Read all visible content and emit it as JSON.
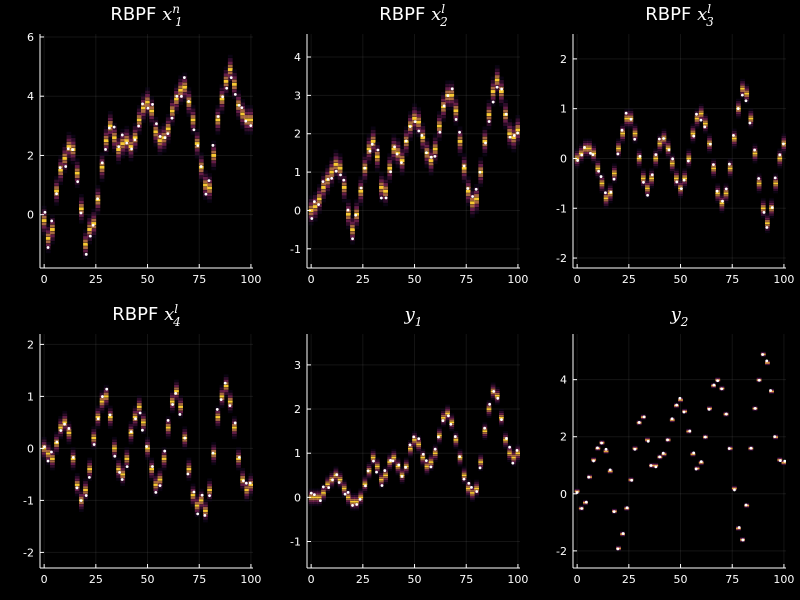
{
  "colors": {
    "background": "#000000",
    "text": "#ffffff",
    "obs_dot": "#ffffff",
    "heat_low": "#0d0829",
    "heat_mid": "#8a226a",
    "heat_high": "#f8c932"
  },
  "chart_data": [
    {
      "type": "heatmap",
      "title_prefix": "RBPF ",
      "title_math": "x",
      "title_sup": "n",
      "title_sub": "1",
      "xlim": [
        -2,
        101
      ],
      "ylim": [
        -1.8,
        6.1
      ],
      "xticks": [
        0,
        25,
        50,
        75,
        100
      ],
      "yticks": [
        0,
        2,
        4,
        6
      ],
      "x": [
        0,
        2,
        4,
        6,
        8,
        10,
        12,
        14,
        16,
        18,
        20,
        22,
        24,
        26,
        28,
        30,
        32,
        34,
        36,
        38,
        40,
        42,
        44,
        46,
        48,
        50,
        52,
        54,
        56,
        58,
        60,
        62,
        64,
        66,
        68,
        70,
        72,
        74,
        76,
        78,
        80,
        82,
        84,
        86,
        88,
        90,
        92,
        94,
        96,
        98,
        100
      ],
      "y": [
        -0.2,
        -0.8,
        -0.5,
        0.8,
        1.5,
        1.9,
        2.3,
        2.2,
        1.4,
        0.2,
        -1.0,
        -0.5,
        -0.3,
        0.5,
        1.6,
        2.5,
        3.0,
        2.6,
        2.2,
        2.4,
        2.5,
        2.3,
        2.6,
        3.2,
        3.6,
        3.8,
        3.5,
        2.8,
        2.5,
        2.6,
        2.9,
        3.5,
        3.9,
        4.2,
        4.3,
        3.8,
        3.2,
        2.4,
        1.6,
        1.0,
        0.9,
        2.0,
        3.2,
        3.9,
        4.5,
        4.9,
        4.4,
        3.7,
        3.4,
        3.2,
        3.2
      ]
    },
    {
      "type": "heatmap",
      "title_prefix": "RBPF ",
      "title_math": "x",
      "title_sup": "l",
      "title_sub": "2",
      "xlim": [
        -2,
        101
      ],
      "ylim": [
        -1.5,
        4.6
      ],
      "xticks": [
        0,
        25,
        50,
        75,
        100
      ],
      "yticks": [
        -1,
        0,
        1,
        2,
        3,
        4
      ],
      "x": [
        0,
        2,
        4,
        6,
        8,
        10,
        12,
        14,
        16,
        18,
        20,
        22,
        24,
        26,
        28,
        30,
        32,
        34,
        36,
        38,
        40,
        42,
        44,
        46,
        48,
        50,
        52,
        54,
        56,
        58,
        60,
        62,
        64,
        66,
        68,
        70,
        72,
        74,
        76,
        78,
        80,
        82,
        84,
        86,
        88,
        90,
        92,
        94,
        96,
        98,
        100
      ],
      "y": [
        0.0,
        0.1,
        0.3,
        0.6,
        0.8,
        1.0,
        1.2,
        1.1,
        0.6,
        -0.1,
        -0.5,
        -0.1,
        0.5,
        1.1,
        1.6,
        1.8,
        1.4,
        0.6,
        0.5,
        1.1,
        1.6,
        1.5,
        1.3,
        1.8,
        2.2,
        2.4,
        2.3,
        1.9,
        1.5,
        1.3,
        1.6,
        2.2,
        2.7,
        3.0,
        3.0,
        2.6,
        1.8,
        1.1,
        0.5,
        0.2,
        0.3,
        1.0,
        1.8,
        2.5,
        3.1,
        3.4,
        3.1,
        2.5,
        2.0,
        1.9,
        2.1
      ]
    },
    {
      "type": "heatmap",
      "title_prefix": "RBPF ",
      "title_math": "x",
      "title_sup": "l",
      "title_sub": "3",
      "xlim": [
        -2,
        101
      ],
      "ylim": [
        -2.2,
        2.5
      ],
      "xticks": [
        0,
        25,
        50,
        75,
        100
      ],
      "yticks": [
        -2,
        -1,
        0,
        1,
        2
      ],
      "x": [
        0,
        2,
        4,
        6,
        8,
        10,
        12,
        14,
        16,
        18,
        20,
        22,
        24,
        26,
        28,
        30,
        32,
        34,
        36,
        38,
        40,
        42,
        44,
        46,
        48,
        50,
        52,
        54,
        56,
        58,
        60,
        62,
        64,
        66,
        68,
        70,
        72,
        74,
        76,
        78,
        80,
        82,
        84,
        86,
        88,
        90,
        92,
        94,
        96,
        98,
        100
      ],
      "y": [
        0.0,
        0.1,
        0.2,
        0.2,
        0.1,
        -0.2,
        -0.5,
        -0.8,
        -0.7,
        -0.3,
        0.2,
        0.5,
        0.8,
        0.8,
        0.5,
        0.0,
        -0.4,
        -0.6,
        -0.4,
        0.0,
        0.3,
        0.4,
        0.2,
        -0.1,
        -0.4,
        -0.6,
        -0.4,
        0.0,
        0.5,
        0.8,
        0.9,
        0.7,
        0.3,
        -0.2,
        -0.7,
        -0.9,
        -0.7,
        -0.2,
        0.4,
        1.0,
        1.4,
        1.3,
        0.8,
        0.1,
        -0.5,
        -1.0,
        -1.3,
        -1.0,
        -0.5,
        0.0,
        0.3
      ]
    },
    {
      "type": "heatmap",
      "title_prefix": "RBPF ",
      "title_math": "x",
      "title_sup": "l",
      "title_sub": "4",
      "xlim": [
        -2,
        101
      ],
      "ylim": [
        -2.3,
        2.2
      ],
      "xticks": [
        0,
        25,
        50,
        75,
        100
      ],
      "yticks": [
        -2,
        -1,
        0,
        1,
        2
      ],
      "x": [
        0,
        2,
        4,
        6,
        8,
        10,
        12,
        14,
        16,
        18,
        20,
        22,
        24,
        26,
        28,
        30,
        32,
        34,
        36,
        38,
        40,
        42,
        44,
        46,
        48,
        50,
        52,
        54,
        56,
        58,
        60,
        62,
        64,
        66,
        68,
        70,
        72,
        74,
        76,
        78,
        80,
        82,
        84,
        86,
        88,
        90,
        92,
        94,
        96,
        98,
        100
      ],
      "y": [
        0.0,
        -0.1,
        -0.2,
        0.1,
        0.4,
        0.5,
        0.3,
        -0.2,
        -0.7,
        -1.0,
        -0.8,
        -0.4,
        0.2,
        0.6,
        0.9,
        1.0,
        0.6,
        0.0,
        -0.4,
        -0.5,
        -0.2,
        0.3,
        0.6,
        0.8,
        0.5,
        0.0,
        -0.4,
        -0.7,
        -0.6,
        -0.2,
        0.4,
        0.9,
        1.1,
        0.8,
        0.2,
        -0.4,
        -0.9,
        -1.1,
        -1.0,
        -1.2,
        -0.8,
        -0.1,
        0.6,
        1.0,
        1.2,
        0.9,
        0.4,
        -0.2,
        -0.6,
        -0.8,
        -0.7
      ]
    },
    {
      "type": "heatmap",
      "title_math": "y",
      "title_sub": "1",
      "xlim": [
        -2,
        101
      ],
      "ylim": [
        -1.6,
        3.7
      ],
      "xticks": [
        0,
        25,
        50,
        75,
        100
      ],
      "yticks": [
        -1,
        0,
        1,
        2,
        3
      ],
      "x": [
        0,
        2,
        4,
        6,
        8,
        10,
        12,
        14,
        16,
        18,
        20,
        22,
        24,
        26,
        28,
        30,
        32,
        34,
        36,
        38,
        40,
        42,
        44,
        46,
        48,
        50,
        52,
        54,
        56,
        58,
        60,
        62,
        64,
        66,
        68,
        70,
        72,
        74,
        76,
        78,
        80,
        82,
        84,
        86,
        88,
        90,
        92,
        94,
        96,
        98,
        100
      ],
      "y": [
        0.0,
        0.0,
        0.0,
        0.1,
        0.3,
        0.4,
        0.5,
        0.4,
        0.2,
        0.0,
        -0.1,
        -0.1,
        0.0,
        0.3,
        0.6,
        0.9,
        0.7,
        0.4,
        0.5,
        0.8,
        0.9,
        0.7,
        0.5,
        0.7,
        1.1,
        1.3,
        1.2,
        0.9,
        0.7,
        0.8,
        1.0,
        1.4,
        1.8,
        1.9,
        1.7,
        1.3,
        0.9,
        0.5,
        0.2,
        0.1,
        0.2,
        0.8,
        1.5,
        2.0,
        2.4,
        2.3,
        1.8,
        1.3,
        1.0,
        0.9,
        1.0
      ]
    },
    {
      "type": "heatmap",
      "title_math": "y",
      "title_sub": "2",
      "xlim": [
        -2,
        101
      ],
      "ylim": [
        -2.6,
        5.6
      ],
      "xticks": [
        0,
        25,
        50,
        75,
        100
      ],
      "yticks": [
        -2,
        0,
        2,
        4
      ],
      "x": [
        0,
        2,
        4,
        6,
        8,
        10,
        12,
        14,
        16,
        18,
        20,
        22,
        24,
        26,
        28,
        30,
        32,
        34,
        36,
        38,
        40,
        42,
        44,
        46,
        48,
        50,
        52,
        54,
        56,
        58,
        60,
        62,
        64,
        66,
        68,
        70,
        72,
        74,
        76,
        78,
        80,
        82,
        84,
        86,
        88,
        90,
        92,
        94,
        96,
        98,
        100
      ],
      "y": [
        0.1,
        -0.5,
        -0.3,
        0.6,
        1.2,
        1.6,
        1.8,
        1.5,
        0.8,
        -0.6,
        -1.9,
        -1.4,
        -0.5,
        0.5,
        1.6,
        2.5,
        2.7,
        1.9,
        1.0,
        1.0,
        1.3,
        1.4,
        1.9,
        2.6,
        3.1,
        3.3,
        2.9,
        2.2,
        1.4,
        0.9,
        1.1,
        2.0,
        3.0,
        3.8,
        4.0,
        3.7,
        2.8,
        1.6,
        0.2,
        -1.2,
        -1.6,
        -0.4,
        1.6,
        3.0,
        4.0,
        4.9,
        4.6,
        3.6,
        2.0,
        1.2,
        1.1
      ]
    }
  ]
}
